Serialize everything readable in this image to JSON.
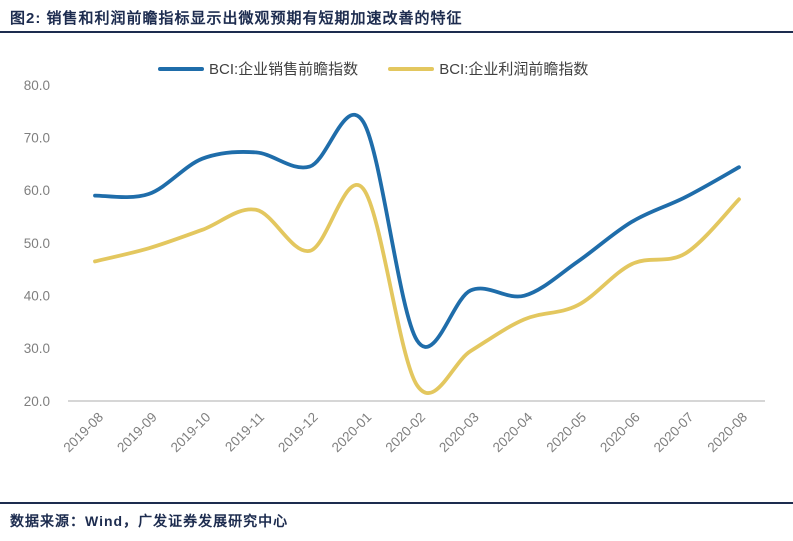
{
  "title": "图2: 销售和利润前瞻指标显示出微观预期有短期加速改善的特征",
  "source": "数据来源：Wind，广发证券发展研究中心",
  "colors": {
    "navy": "#1D2C4F",
    "sales_blue": "#1F6DAA",
    "profit_yellow": "#E3C75F",
    "axis_label_gray": "#7F7F7F",
    "axis_line_gray": "#D6D6D6",
    "legend_text": "#404040"
  },
  "legend": [
    {
      "label": "BCI:企业销售前瞻指数",
      "color": "#1F6DAA"
    },
    {
      "label": "BCI:企业利润前瞻指数",
      "color": "#E3C75F"
    }
  ],
  "chart_data": {
    "type": "line",
    "title": "",
    "xlabel": "",
    "ylabel": "",
    "x": [
      "2019-08",
      "2019-09",
      "2019-10",
      "2019-11",
      "2019-12",
      "2020-01",
      "2020-02",
      "2020-03",
      "2020-04",
      "2020-05",
      "2020-06",
      "2020-07",
      "2020-08"
    ],
    "series": [
      {
        "name": "BCI:企业销售前瞻指数",
        "color": "#1F6DAA",
        "values": [
          59.0,
          59.3,
          66.0,
          67.2,
          64.5,
          73.0,
          31.5,
          41.0,
          40.0,
          46.5,
          54.0,
          58.7,
          64.4
        ]
      },
      {
        "name": "BCI:企业利润前瞻指数",
        "color": "#E3C75F",
        "values": [
          46.5,
          49.0,
          52.5,
          56.3,
          48.5,
          60.3,
          23.0,
          29.5,
          35.5,
          38.2,
          46.0,
          48.0,
          58.3
        ]
      }
    ],
    "ylim": [
      20,
      80
    ],
    "yticks": [
      80,
      70,
      60,
      50,
      40,
      30,
      20
    ],
    "ytick_labels": [
      "80.0",
      "70.0",
      "60.0",
      "50.0",
      "40.0",
      "30.0",
      "20.0"
    ],
    "grid": "bottom-axis-only",
    "legend_position": "top",
    "line_style": "smooth-spline"
  }
}
